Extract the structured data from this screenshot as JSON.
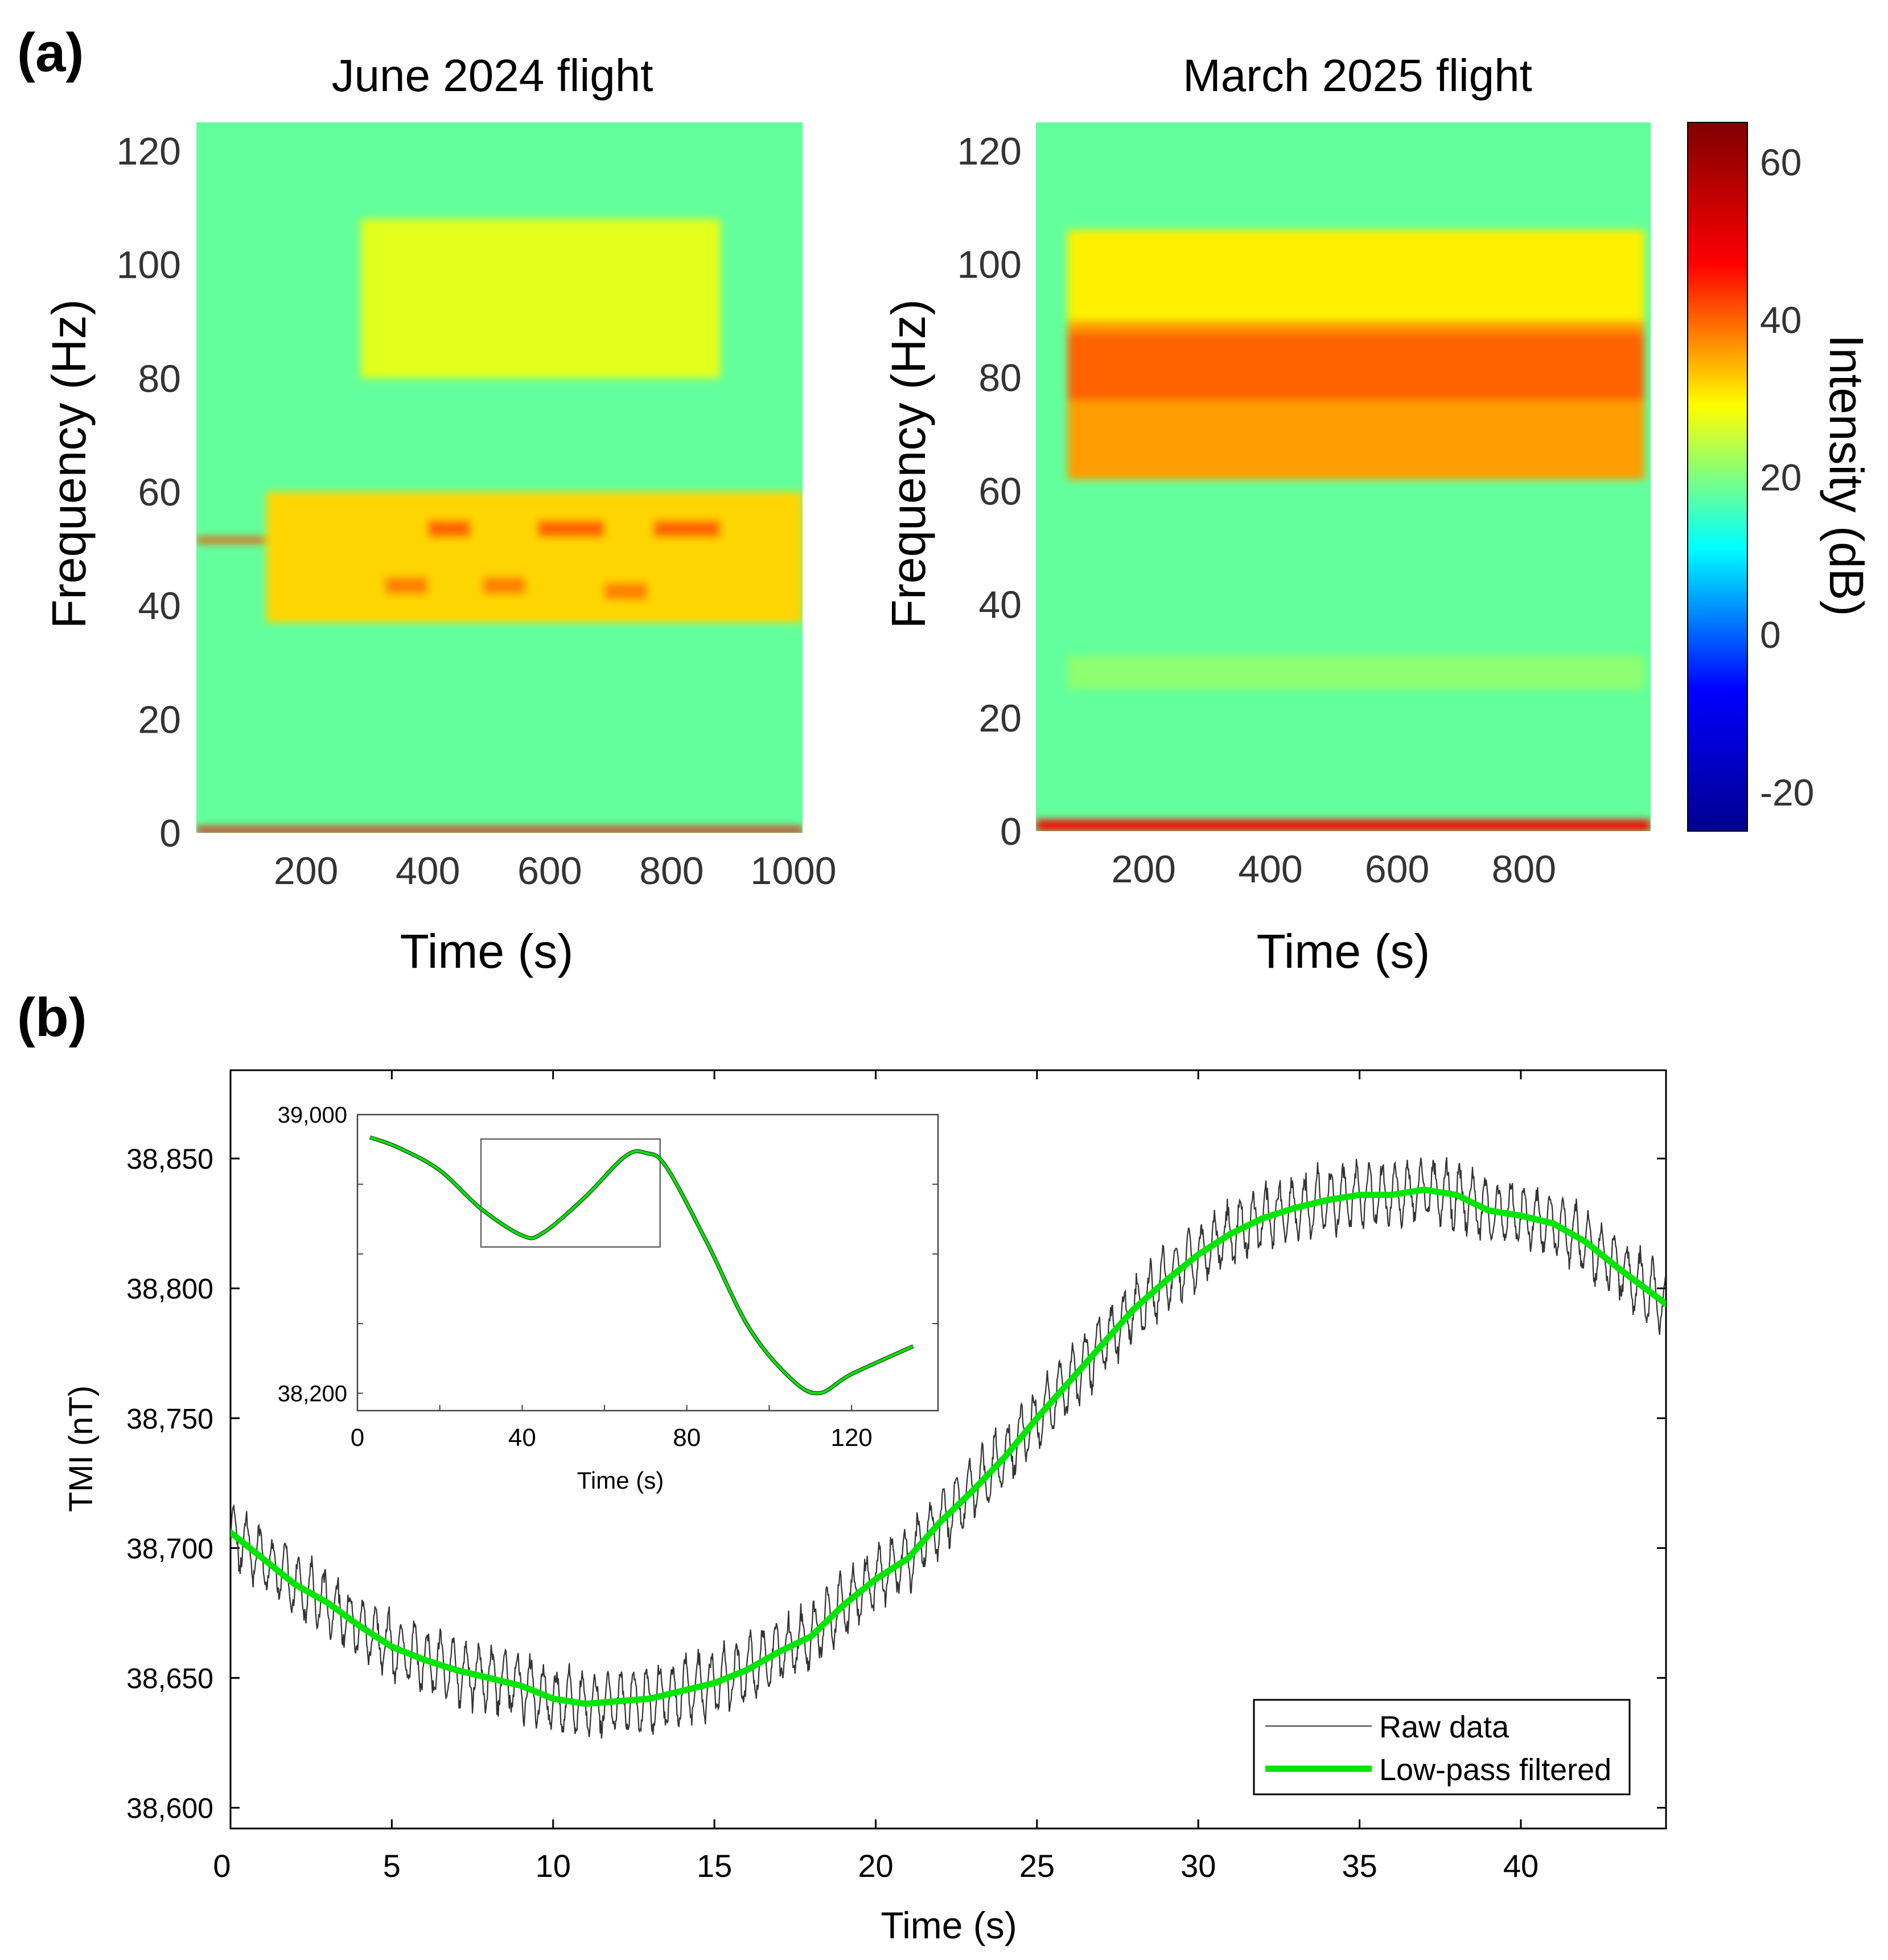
{
  "panels": {
    "a_label": "(a)",
    "b_label": "(b)"
  },
  "colormap": [
    "#00008f",
    "#0000ff",
    "#00ffff",
    "#ffff00",
    "#ff0000",
    "#800000"
  ],
  "chart_data": [
    {
      "type": "heatmap",
      "title": "June 2024 flight",
      "xlabel": "Time (s)",
      "ylabel": "Frequency (Hz)",
      "xlim": [
        20,
        1015
      ],
      "ylim": [
        0,
        125
      ],
      "xticks": [
        "200",
        "400",
        "600",
        "800",
        "1000"
      ],
      "xtick_values": [
        200,
        400,
        600,
        800,
        1000
      ],
      "yticks": [
        "0",
        "20",
        "40",
        "60",
        "80",
        "100",
        "120"
      ],
      "ytick_values": [
        0,
        20,
        40,
        60,
        80,
        100,
        120
      ],
      "background_db": 18,
      "bands": [
        {
          "t0": 20,
          "t1": 135,
          "f0": 51,
          "f1": 52,
          "db": 42
        },
        {
          "t0": 135,
          "t1": 1015,
          "f0": 37,
          "f1": 60,
          "db": 32
        },
        {
          "t0": 400,
          "t1": 470,
          "f0": 52,
          "f1": 55,
          "db": 40
        },
        {
          "t0": 580,
          "t1": 690,
          "f0": 52,
          "f1": 55,
          "db": 40
        },
        {
          "t0": 770,
          "t1": 880,
          "f0": 52,
          "f1": 55,
          "db": 40
        },
        {
          "t0": 330,
          "t1": 400,
          "f0": 42,
          "f1": 45,
          "db": 38
        },
        {
          "t0": 490,
          "t1": 560,
          "f0": 42,
          "f1": 45,
          "db": 38
        },
        {
          "t0": 690,
          "t1": 760,
          "f0": 41,
          "f1": 44,
          "db": 38
        },
        {
          "t0": 290,
          "t1": 880,
          "f0": 80,
          "f1": 108,
          "db": 27
        },
        {
          "t0": 0,
          "t1": 1015,
          "f0": 0,
          "f1": 1,
          "db": 48
        }
      ]
    },
    {
      "type": "heatmap",
      "title": "March 2025 flight",
      "xlabel": "Time (s)",
      "ylabel": "Frequency (Hz)",
      "xlim": [
        30,
        1000
      ],
      "ylim": [
        0,
        125
      ],
      "xticks": [
        "200",
        "400",
        "600",
        "800"
      ],
      "xtick_values": [
        200,
        400,
        600,
        800
      ],
      "yticks": [
        "0",
        "20",
        "40",
        "60",
        "80",
        "100",
        "120"
      ],
      "ytick_values": [
        0,
        20,
        40,
        60,
        80,
        100,
        120
      ],
      "background_db": 18,
      "bands": [
        {
          "t0": 80,
          "t1": 990,
          "f0": 90,
          "f1": 106,
          "db": 30
        },
        {
          "t0": 80,
          "t1": 990,
          "f0": 62,
          "f1": 90,
          "db": 36
        },
        {
          "t0": 80,
          "t1": 990,
          "f0": 76,
          "f1": 88,
          "db": 40
        },
        {
          "t0": 80,
          "t1": 990,
          "f0": 25,
          "f1": 31,
          "db": 21
        },
        {
          "t0": 0,
          "t1": 1000,
          "f0": 0,
          "f1": 2,
          "db": 48
        }
      ]
    },
    {
      "type": "colorbar",
      "label": "Intensity (dB)",
      "ylim": [
        -25,
        65
      ],
      "ticks": [
        "-20",
        "0",
        "20",
        "40",
        "60"
      ],
      "tick_values": [
        -20,
        0,
        20,
        40,
        60
      ]
    },
    {
      "type": "line",
      "xlabel": "Time (s)",
      "ylabel": "TMI (nT)",
      "xlim": [
        0,
        44.5
      ],
      "ylim": [
        38592,
        38884
      ],
      "xticks": [
        "0",
        "5",
        "10",
        "15",
        "20",
        "25",
        "30",
        "35",
        "40"
      ],
      "xtick_values": [
        0,
        5,
        10,
        15,
        20,
        25,
        30,
        35,
        40
      ],
      "yticks": [
        "38,600",
        "38,650",
        "38,700",
        "38,750",
        "38,800",
        "38,850"
      ],
      "ytick_values": [
        38600,
        38650,
        38700,
        38750,
        38800,
        38850
      ],
      "legend": [
        "Raw data",
        "Low-pass filtered"
      ],
      "legend_position": "bottom-right",
      "series": [
        {
          "name": "Low-pass filtered",
          "color": "#00e600",
          "x": [
            0,
            1,
            2,
            3,
            4,
            5,
            6,
            7,
            8,
            9,
            10,
            11,
            12,
            13,
            14,
            15,
            16,
            17,
            18,
            19,
            20,
            21,
            22,
            23,
            24,
            25,
            26,
            27,
            28,
            29,
            30,
            31,
            32,
            33,
            34,
            35,
            36,
            37,
            38,
            39,
            40,
            41,
            42,
            43,
            44.5
          ],
          "y": [
            38706,
            38696,
            38686,
            38679,
            38670,
            38662,
            38657,
            38653,
            38650,
            38647,
            38642,
            38640,
            38641,
            38642,
            38645,
            38648,
            38653,
            38660,
            38666,
            38678,
            38688,
            38696,
            38710,
            38722,
            38735,
            38750,
            38764,
            38778,
            38792,
            38803,
            38813,
            38821,
            38827,
            38831,
            38834,
            38836,
            38836,
            38838,
            38836,
            38830,
            38828,
            38825,
            38818,
            38808,
            38794
          ]
        },
        {
          "name": "Raw data",
          "color": "#000000",
          "oscillation_period_s": 0.4,
          "oscillation_amplitude_nT": 11
        }
      ]
    },
    {
      "type": "line",
      "role": "inset",
      "xlabel": "Time (s)",
      "xlim": [
        0,
        141
      ],
      "ylim": [
        38150,
        39000
      ],
      "xticks": [
        "0",
        "40",
        "80",
        "120"
      ],
      "xtick_values": [
        0,
        40,
        80,
        120
      ],
      "yticks": [
        "38,200",
        "39,000"
      ],
      "ytick_values": [
        38200,
        39000
      ],
      "zoom_box": {
        "x": [
          30,
          73.5
        ],
        "y": [
          38620,
          38930
        ]
      },
      "series": [
        {
          "name": "Low-pass filtered",
          "color": "#00e600",
          "x": [
            3,
            10,
            20,
            30,
            40,
            45,
            55,
            65,
            70,
            75,
            85,
            95,
            105,
            112,
            120,
            135
          ],
          "y": [
            38935,
            38905,
            38840,
            38730,
            38653,
            38660,
            38760,
            38880,
            38890,
            38850,
            38630,
            38390,
            38245,
            38200,
            38255,
            38335
          ]
        }
      ]
    }
  ]
}
